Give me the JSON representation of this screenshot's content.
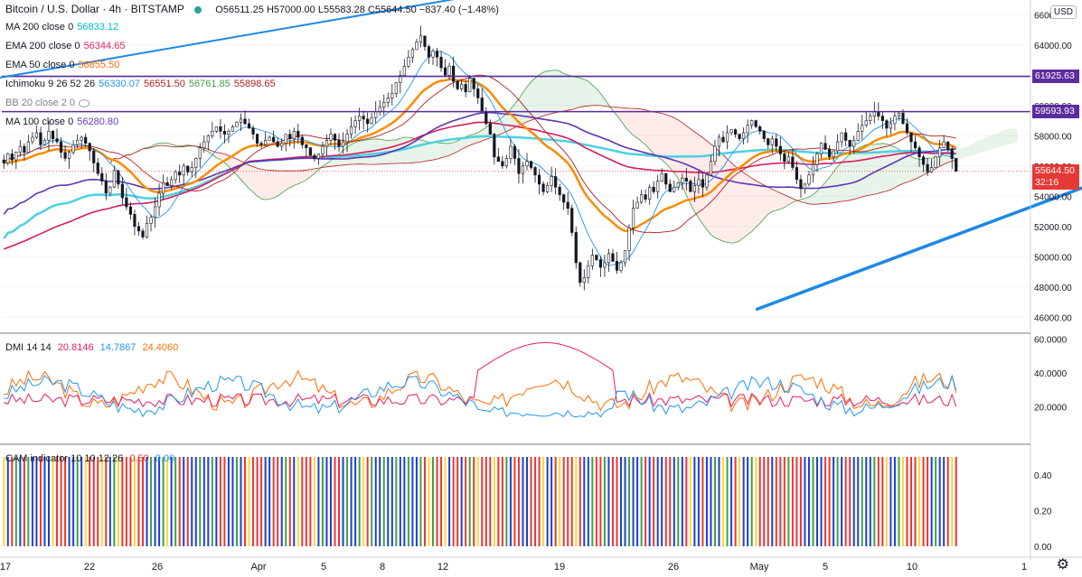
{
  "ticker": {
    "title": "Bitcoin / U.S. Dollar · 4h · BITSTAMP",
    "ohlc": "O56511.25 H57000.00 L55583.28 C55644.50 −837.40 (−1.48%)"
  },
  "currency_button": "USD",
  "indicators": [
    {
      "label": "MA 200 close 0",
      "values": [
        "56833.12"
      ],
      "colors": [
        "#00bcd4"
      ]
    },
    {
      "label": "EMA 200 close 0",
      "values": [
        "56344.65"
      ],
      "colors": [
        "#e91e63"
      ]
    },
    {
      "label": "EMA 50 close 0",
      "values": [
        "56855.50"
      ],
      "colors": [
        "#ff6d00"
      ]
    },
    {
      "label": "Ichimoku 9 26 52 26",
      "values": [
        "56330.07",
        "56551.50",
        "56761.85",
        "55898.65"
      ],
      "colors": [
        "#2196f3",
        "#b71c1c",
        "#43a047",
        "#b71c1c"
      ]
    },
    {
      "label": "BB 20 close 2 0",
      "values": [],
      "colors": []
    },
    {
      "label": "MA 100 close 0",
      "values": [
        "56280.80"
      ],
      "colors": [
        "#673ab7"
      ]
    }
  ],
  "price_tags": [
    {
      "value": "61925.63",
      "color": "#5b2c9e",
      "price": 61925.63
    },
    {
      "value": "59593.93",
      "color": "#5b2c9e",
      "price": 59593.93
    },
    {
      "value": "55644.50",
      "color": "#e53935",
      "price": 55644.5
    },
    {
      "value": "32:16",
      "color": "#e53935",
      "price": 54880
    }
  ],
  "dmi": {
    "label": "DMI 14 14",
    "values": [
      "20.8146",
      "14.7867",
      "24.4060"
    ],
    "colors": [
      "#e91e63",
      "#2196f3",
      "#ff6d00"
    ],
    "ticks": [
      "60.0000",
      "40.0000",
      "20.0000"
    ]
  },
  "cam": {
    "label": "CAM indicator 10 10 12 26",
    "values": [
      "0.50",
      "0.00"
    ],
    "colors": [
      "#e53935",
      "#2196f3"
    ],
    "ticks": [
      "0.40",
      "0.20",
      "0.00"
    ]
  },
  "x_axis": [
    "17",
    "22",
    "26",
    "Apr",
    "5",
    "8",
    "12",
    "19",
    "26",
    "May",
    "5",
    "10",
    "1"
  ],
  "chart_data": {
    "type": "candlestick",
    "title": "Bitcoin / U.S. Dollar · 4h · BITSTAMP",
    "y_axis_ticks": [
      46000,
      48000,
      50000,
      52000,
      54000,
      56000,
      58000,
      60000,
      62000,
      64000,
      66000
    ],
    "ylim": [
      45000,
      66500
    ],
    "horizontal_levels": [
      61925.63,
      59593.93
    ],
    "last_close": 55644.5,
    "trendline": {
      "from": {
        "x_index": 184,
        "price": 46500
      },
      "to": {
        "x_index": 300,
        "price": 58200
      },
      "color": "#1e88e5"
    },
    "candles_close": [
      56200,
      56800,
      56400,
      56900,
      57300,
      56900,
      57600,
      57900,
      58200,
      57400,
      57700,
      58300,
      57800,
      57600,
      56900,
      56500,
      56900,
      57400,
      57700,
      57900,
      57500,
      57000,
      56200,
      55500,
      55000,
      54200,
      54600,
      55700,
      54800,
      53900,
      53300,
      52800,
      52000,
      51700,
      51300,
      52200,
      52600,
      53300,
      54200,
      54900,
      54700,
      55100,
      55600,
      55400,
      56000,
      55600,
      55900,
      56500,
      57200,
      57600,
      58000,
      58300,
      58600,
      58300,
      58100,
      58300,
      58600,
      58900,
      59100,
      58800,
      58500,
      58100,
      57500,
      57400,
      57700,
      57900,
      57600,
      57300,
      57500,
      58100,
      57800,
      58300,
      57900,
      57400,
      57200,
      56700,
      56500,
      56800,
      57300,
      57700,
      58100,
      57700,
      57300,
      57600,
      58100,
      58600,
      59000,
      59300,
      59100,
      58800,
      59200,
      59600,
      59900,
      60200,
      60500,
      60800,
      61500,
      62000,
      62600,
      63200,
      63700,
      64200,
      64600,
      63900,
      63200,
      63600,
      63200,
      62500,
      62000,
      62600,
      61600,
      61100,
      61400,
      60900,
      61800,
      61100,
      60500,
      59600,
      58800,
      58100,
      56600,
      56300,
      56000,
      56500,
      57300,
      56500,
      55500,
      56000,
      56300,
      55900,
      55400,
      54800,
      54300,
      54700,
      55300,
      54600,
      54100,
      53600,
      53200,
      51600,
      49600,
      48300,
      48600,
      49400,
      50100,
      49800,
      49300,
      49600,
      50200,
      49700,
      49100,
      49600,
      50400,
      51900,
      53200,
      53600,
      54100,
      53800,
      54600,
      54300,
      55000,
      55500,
      54800,
      54300,
      54600,
      54900,
      55200,
      55000,
      54300,
      54700,
      55100,
      54600,
      55400,
      56300,
      57300,
      57900,
      57600,
      58200,
      58400,
      58100,
      57800,
      58200,
      58700,
      59000,
      58600,
      58300,
      57800,
      57400,
      57800,
      57300,
      56800,
      56300,
      56600,
      55900,
      55100,
      54500,
      54800,
      55400,
      56100,
      56800,
      57500,
      57100,
      56600,
      57000,
      57600,
      58200,
      57700,
      57300,
      57700,
      58300,
      58700,
      59000,
      59300,
      59600,
      59300,
      59000,
      58500,
      58800,
      59300,
      59500,
      58800,
      58200,
      57600,
      57200,
      56600,
      56100,
      55600,
      55900,
      56600,
      57200,
      57600,
      57100,
      56500,
      55644
    ]
  }
}
